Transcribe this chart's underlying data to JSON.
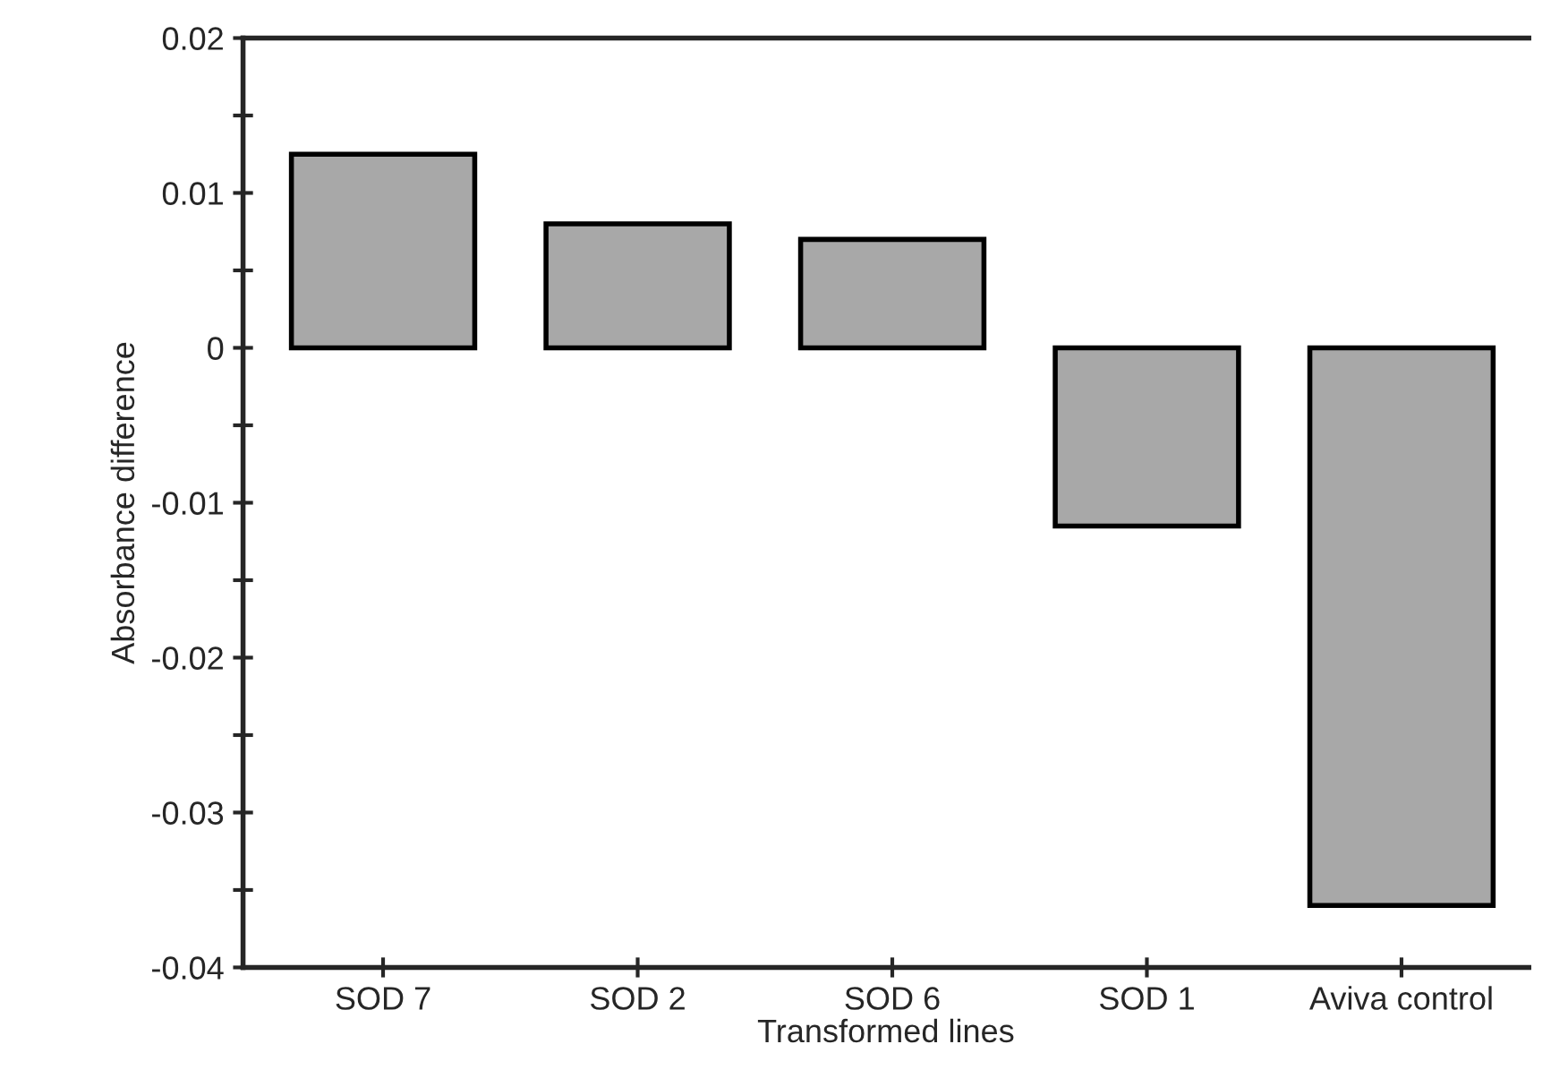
{
  "chart_data": {
    "type": "bar",
    "xlabel": "Transformed lines",
    "ylabel": "Absorbance difference",
    "categories": [
      "SOD 7",
      "SOD 2",
      "SOD 6",
      "SOD 1",
      "Aviva control"
    ],
    "values": [
      0.0125,
      0.008,
      0.007,
      -0.0115,
      -0.036
    ],
    "color": "#a8a8a8",
    "ylim": [
      -0.04,
      0.02
    ],
    "yticks": [
      -0.04,
      {
        "value": -0.035,
        "label": null
      },
      -0.03,
      {
        "value": -0.025,
        "label": null
      },
      -0.02,
      {
        "value": -0.015,
        "label": null
      },
      -0.01,
      {
        "value": -0.005,
        "label": null
      },
      0,
      {
        "value": 0.005,
        "label": null
      },
      0.01,
      {
        "value": 0.015,
        "label": null
      },
      0.02
    ],
    "grid": false,
    "legend": false
  }
}
